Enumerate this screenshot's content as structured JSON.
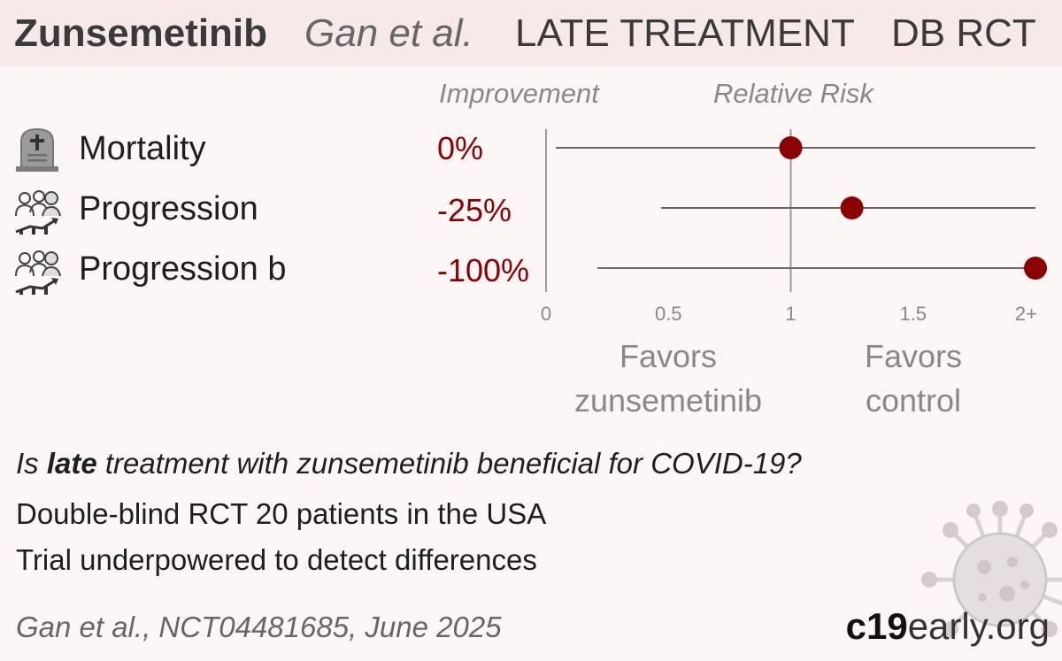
{
  "header": {
    "drug": "Zunsemetinib",
    "author": "Gan et al.",
    "stage": "LATE TREATMENT",
    "design": "DB RCT"
  },
  "columns": {
    "improvement": "Improvement",
    "relative_risk": "Relative Risk"
  },
  "outcomes": [
    {
      "label": "Mortality",
      "value": "0%",
      "icon": "tombstone-icon"
    },
    {
      "label": "Progression",
      "value": "-25%",
      "icon": "progression-icon"
    },
    {
      "label": "Progression b",
      "value": "-100%",
      "icon": "progression-icon"
    }
  ],
  "favors": {
    "left_line1": "Favors",
    "left_line2": "zunsemetinib",
    "right_line1": "Favors",
    "right_line2": "control"
  },
  "summary": {
    "question_pre": "Is ",
    "question_bold": "late",
    "question_post": " treatment with zunsemetinib beneficial for COVID-19?",
    "line2": "Double-blind RCT 20 patients in the USA",
    "line3": "Trial underpowered to detect differences"
  },
  "citation": "Gan et al., NCT04481685, June 2025",
  "brand": {
    "part1": "c19",
    "part2": "early.org"
  },
  "colors": {
    "point": "#8b0000",
    "improvement_text": "#8b0000",
    "header_bg": "#f6e9e8",
    "background": "#fcf6f6"
  },
  "chart_data": {
    "type": "forest",
    "xlim": [
      0,
      2
    ],
    "tick_labels": [
      "0",
      "0.5",
      "1",
      "1.5",
      "2+"
    ],
    "tick_values": [
      0,
      0.5,
      1,
      1.5,
      2
    ],
    "reference_line": 1,
    "rows": [
      {
        "label": "Mortality",
        "rr": 1.0,
        "ci_low": 0.04,
        "ci_high": 2,
        "ci_high_truncated": true
      },
      {
        "label": "Progression",
        "rr": 1.25,
        "ci_low": 0.47,
        "ci_high": 2,
        "ci_high_truncated": true
      },
      {
        "label": "Progression b",
        "rr": 2,
        "ci_low": 0.21,
        "ci_high": 2,
        "ci_high_truncated": true,
        "rr_truncated": true
      }
    ]
  }
}
